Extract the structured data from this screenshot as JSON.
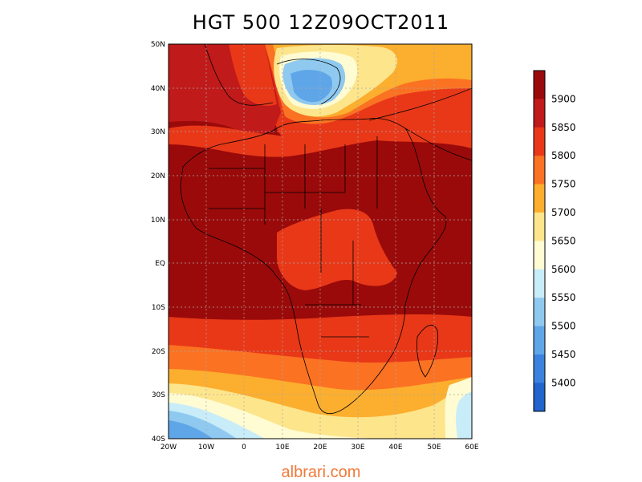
{
  "title": "HGT 500  12Z09OCT2011",
  "watermark": "albrari.com",
  "watermark_color": "#f07a3a",
  "lat_labels": [
    "50N",
    "40N",
    "30N",
    "20N",
    "10N",
    "EQ",
    "10S",
    "20S",
    "30S",
    "40S"
  ],
  "lon_labels": [
    "20W",
    "10W",
    "0",
    "10E",
    "20E",
    "30E",
    "40E",
    "50E",
    "60E"
  ],
  "colorbar": {
    "levels": [
      "5900",
      "5850",
      "5800",
      "5750",
      "5700",
      "5650",
      "5600",
      "5550",
      "5500",
      "5450",
      "5400"
    ],
    "colors": [
      "#9b0a0a",
      "#c01a1a",
      "#e83818",
      "#fa7222",
      "#fcae2e",
      "#fde58c",
      "#fffbd2",
      "#c8ecf8",
      "#8fc9f0",
      "#5fa6e8",
      "#3b82de",
      "#2064cc"
    ]
  }
}
